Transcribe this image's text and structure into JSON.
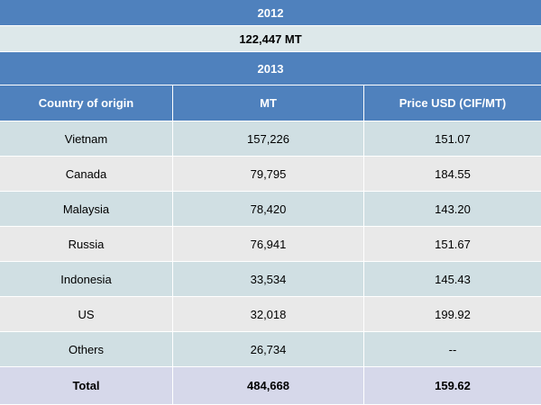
{
  "year_2012": {
    "label": "2012",
    "value": "122,447  MT"
  },
  "year_2013": {
    "label": "2013"
  },
  "columns": [
    "Country of origin",
    "MT",
    "Price USD (CIF/MT)"
  ],
  "rows": [
    [
      "Vietnam",
      "157,226",
      "151.07"
    ],
    [
      "Canada",
      "79,795",
      "184.55"
    ],
    [
      "Malaysia",
      "78,420",
      "143.20"
    ],
    [
      "Russia",
      "76,941",
      "151.67"
    ],
    [
      "Indonesia",
      "33,534",
      "145.43"
    ],
    [
      "US",
      "32,018",
      "199.92"
    ],
    [
      "Others",
      "26,734",
      "--"
    ]
  ],
  "total": [
    "Total",
    "484,668",
    "159.62"
  ],
  "colors": {
    "header_blue": "#4f81bd",
    "row_blue_gray": "#d0dfe3",
    "row_gray": "#e9e9e9",
    "total_row": "#d6d8ea"
  }
}
